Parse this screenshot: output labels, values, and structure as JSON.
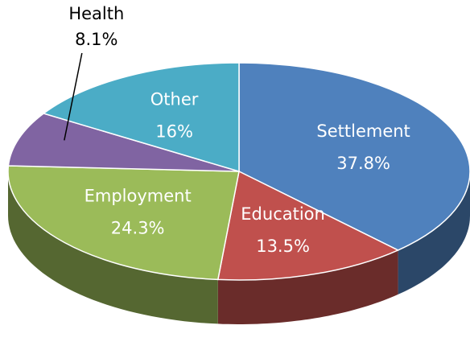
{
  "chart_data": {
    "type": "pie3d",
    "categories": [
      "Settlement",
      "Education",
      "Employment",
      "Health",
      "Other"
    ],
    "values": [
      37.8,
      13.5,
      24.3,
      8.1,
      16
    ],
    "value_labels": [
      "37.8%",
      "13.5%",
      "24.3%",
      "8.1%",
      "16%"
    ],
    "colors": [
      "#4f81bd",
      "#c0504d",
      "#9bbb59",
      "#8064a2",
      "#4bacc6"
    ]
  }
}
